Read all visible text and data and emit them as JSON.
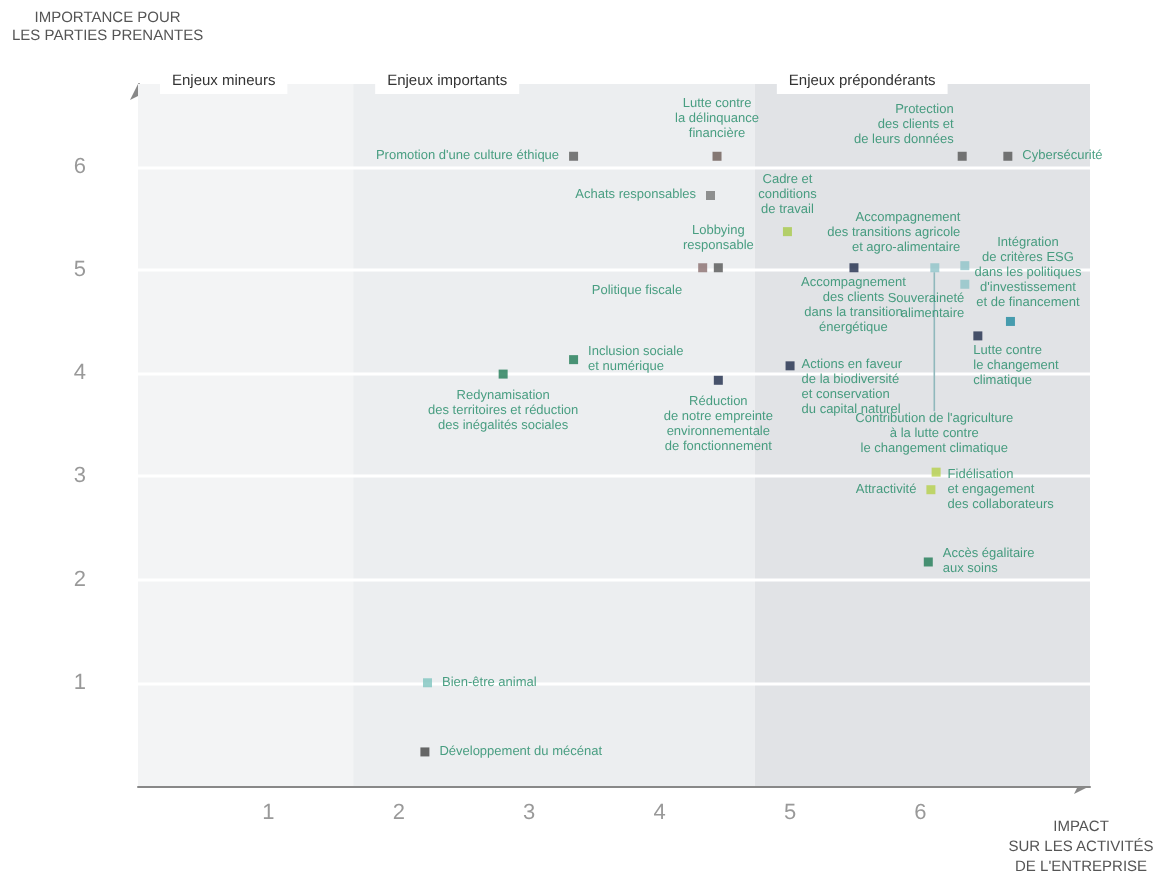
{
  "chart_data": {
    "type": "scatter",
    "ylabel": "IMPORTANCE POUR\nLES PARTIES PRENANTES",
    "xlabel": "IMPACT\nSUR LES ACTIVITÉS\nDE L'ENTREPRISE",
    "xlim": [
      0,
      7.3
    ],
    "ylim": [
      0,
      6.8
    ],
    "xticks": [
      1,
      2,
      3,
      4,
      5,
      6
    ],
    "yticks": [
      1,
      2,
      3,
      4,
      5,
      6
    ],
    "grid": "y",
    "marker": "square",
    "bands": [
      {
        "axis": "x",
        "from": 0,
        "to": 1.65,
        "label": "Enjeux mineurs",
        "color": "#f3f4f5"
      },
      {
        "axis": "x",
        "from": 1.65,
        "to": 4.73,
        "label": "Enjeux importants",
        "color": "#eceef0"
      },
      {
        "axis": "x",
        "from": 4.73,
        "to": 7.3,
        "label": "Enjeux prépondérants",
        "color": "#e1e3e6"
      }
    ],
    "x": [
      3.34,
      4.44,
      6.32,
      6.67,
      4.39,
      4.98,
      4.33,
      4.45,
      5.49,
      6.11,
      6.34,
      6.34,
      6.69,
      6.44,
      3.34,
      2.8,
      4.45,
      5.0,
      6.12,
      6.08,
      6.06,
      2.22,
      2.2
    ],
    "values": [
      6.1,
      6.1,
      6.1,
      6.1,
      5.72,
      5.37,
      5.02,
      5.02,
      5.02,
      5.02,
      5.04,
      4.86,
      4.5,
      4.36,
      4.13,
      3.99,
      3.93,
      4.07,
      3.04,
      2.87,
      2.17,
      1.0,
      0.33
    ],
    "colors": [
      "#5a5a5a",
      "#6b5a55",
      "#555555",
      "#555555",
      "#777777",
      "#a8c94a",
      "#8a6e6e",
      "#555555",
      "#1e2a4a",
      "#8fc3c8",
      "#8fc3c8",
      "#8fc3c8",
      "#1f8aa0",
      "#1e2a4a",
      "#1f7a55",
      "#1f7a55",
      "#1e2a4a",
      "#1e2a4a",
      "#b5cf4a",
      "#b5cf4a",
      "#1f7a55",
      "#7fc4bf",
      "#444444"
    ],
    "value_labels": [
      "Promotion d'une culture éthique",
      "Lutte contre\nla délinquance\nfinancière",
      "Protection\ndes clients et\nde leurs données",
      "Cybersécurité",
      "Achats responsables",
      "Cadre et\nconditions\nde travail",
      "Politique fiscale",
      "Lobbying\nresponsable",
      "Accompagnement\ndes clients\ndans la transition\nénergétique",
      "Contribution de l'agriculture\nà la lutte contre\nle changement climatique",
      "Accompagnement\ndes transitions agricole\net agro-alimentaire",
      "Souveraineté\nalimentaire",
      "Intégration\nde critères ESG\ndans les politiques\nd'investissement\net de financement",
      "Lutte contre\nle changement\nclimatique",
      "Inclusion sociale\net numérique",
      "Redynamisation\ndes territoires et réduction\ndes inégalités sociales",
      "Réduction\nde notre empreinte\nenvironnementale\nde fonctionnement",
      "Actions en faveur\nde la biodiversité\net conservation\ndu capital naturel",
      "Fidélisation\net engagement\ndes collaborateurs",
      "Attractivité",
      "Accès égalitaire\naux soins",
      "Bien-être animal",
      "Développement du mécénat"
    ]
  }
}
